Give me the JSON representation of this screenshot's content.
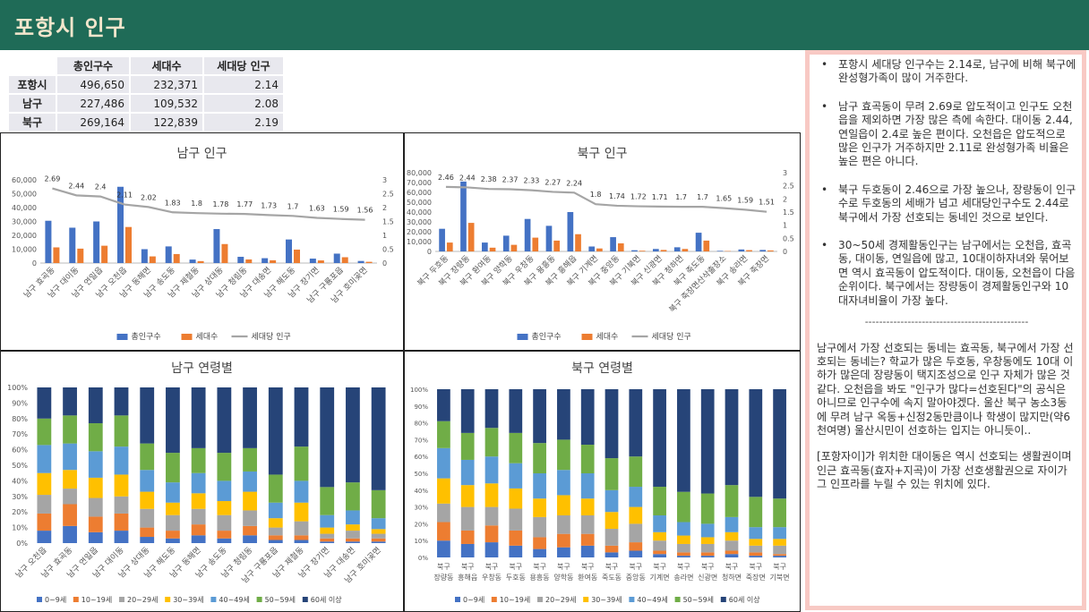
{
  "header": {
    "title": "포항시 인구"
  },
  "summary_table": {
    "headers": [
      "",
      "총인구수",
      "세대수",
      "세대당 인구"
    ],
    "rows": [
      [
        "포항시",
        "496,650",
        "232,371",
        "2.14"
      ],
      [
        "남구",
        "227,486",
        "109,532",
        "2.08"
      ],
      [
        "북구",
        "269,164",
        "122,839",
        "2.19"
      ]
    ]
  },
  "notes": {
    "bullets": [
      "포항시 세대당 인구수는 2.14로, 남구에 비해 북구에 완성형가족이 많이 거주한다.",
      "남구 효곡동이 무려 2.69로 압도적이고 인구도 오천읍을 제외하면 가장 많은 측에 속한다. 대이동 2.44, 연일읍이 2.4로 높은 편이다. 오천읍은 압도적으로 많은 인구가 거주하지만 2.11로 완성형가족 비율은 높은 편은 아니다.",
      "북구 두호동이 2.46으로 가장 높으나, 장량동이 인구수로 두호동의 세배가 넘고 세대당인구수도 2.44로 북구에서 가장 선호되는 동네인 것으로 보인다.",
      "30~50세 경제활동인구는 남구에서는 오천읍, 효곡동, 대이동, 연일읍에 많고, 10대이하자녀와 묶어보면 역시 효곡동이 압도적이다. 대이동, 오천읍이 다음 순위이다. 북구에서는 장량동이 경제활동인구와 10대자녀비율이 가장 높다."
    ],
    "divider": "----------------------------------------------",
    "paragraphs": [
      "남구에서 가장 선호되는 동네는 효곡동, 북구에서 가장 선호되는 동네는? 학교가 많은 두호동, 우창동에도 10대 이하가 많은데 장량동이 택지조성으로 인구 자체가 많은 것 같다. 오천읍을 봐도 \"인구가 많다=선호된다\"의 공식은 아니므로 인구수에 속지 말아야겠다. 울산 북구 농소3동에 무려 남구 옥동+신정2동만큼이나 학생이 많지만(약6천여명) 울산시민이 선호하는 입지는 아니듯이..",
      "[포항자이]가 위치한 대이동은 역시 선호되는 생활권이며 인근 효곡동(효자+지곡)이 가장 선호생활권으로 자이가 그 인프라를 누릴 수 있는 위치에 있다."
    ]
  },
  "chart_data": [
    {
      "type": "bar",
      "title": "남구 인구",
      "categories": [
        "남구 효곡동",
        "남구 대이동",
        "남구 연일읍",
        "남구 오천읍",
        "남구 동해면",
        "남구 송도동",
        "남구 제철동",
        "남구 상대동",
        "남구 청림동",
        "남구 대송면",
        "남구 해도동",
        "남구 장기면",
        "남구 구룡포읍",
        "남구 호미곶면"
      ],
      "series": [
        {
          "name": "총인구수",
          "kind": "bar",
          "axis": "left",
          "values": [
            30500,
            25500,
            30000,
            55000,
            10000,
            12000,
            2500,
            24500,
            4500,
            3500,
            17000,
            3200,
            6800,
            1500
          ]
        },
        {
          "name": "세대수",
          "kind": "bar",
          "axis": "left",
          "values": [
            11300,
            10400,
            12500,
            26000,
            4800,
            6500,
            1400,
            13700,
            2600,
            2000,
            9700,
            1900,
            4200,
            900
          ]
        },
        {
          "name": "세대당 인구",
          "kind": "line",
          "axis": "right",
          "values": [
            2.69,
            2.44,
            2.4,
            2.11,
            2.02,
            1.83,
            1.8,
            1.78,
            1.77,
            1.73,
            1.7,
            1.63,
            1.59,
            1.56
          ]
        }
      ],
      "ylim": [
        0,
        60000
      ],
      "yticks": [
        "0",
        "10,000",
        "20,000",
        "30,000",
        "40,000",
        "50,000",
        "60,000"
      ],
      "y2lim": [
        0,
        3
      ],
      "y2ticks": [
        "0",
        "0.5",
        "1",
        "1.5",
        "2",
        "2.5",
        "3"
      ],
      "legend": "bottom",
      "colors": {
        "총인구수": "#4472c4",
        "세대수": "#ed7d31",
        "세대당 인구": "#a5a5a5"
      }
    },
    {
      "type": "bar",
      "title": "북구 인구",
      "categories": [
        "북구 두호동",
        "북구 장량동",
        "북구 환여동",
        "북구 양학동",
        "북구 우창동",
        "북구 용흥동",
        "북구 흥해읍",
        "북구 기계면",
        "북구 중앙동",
        "북구 기북면",
        "북구 신광면",
        "북구 청하면",
        "북구 죽도동",
        "북구 죽장면산삭출장소",
        "북구 송라면",
        "북구 죽장면"
      ],
      "series": [
        {
          "name": "총인구수",
          "kind": "bar",
          "axis": "left",
          "values": [
            23000,
            71000,
            9000,
            16000,
            33000,
            26000,
            40000,
            5000,
            14500,
            1200,
            2500,
            4200,
            19000,
            600,
            2000,
            1500
          ]
        },
        {
          "name": "세대수",
          "kind": "bar",
          "axis": "left",
          "values": [
            9000,
            29000,
            3800,
            6700,
            14000,
            11000,
            17500,
            3000,
            8200,
            700,
            1500,
            2500,
            11000,
            400,
            1300,
            1000
          ]
        },
        {
          "name": "세대당 인구",
          "kind": "line",
          "axis": "right",
          "values": [
            2.46,
            2.44,
            2.38,
            2.37,
            2.33,
            2.27,
            2.24,
            1.8,
            1.74,
            1.72,
            1.71,
            1.7,
            1.7,
            1.65,
            1.59,
            1.51
          ]
        }
      ],
      "ylim": [
        0,
        80000
      ],
      "yticks": [
        "0",
        "10,000",
        "20,000",
        "30,000",
        "40,000",
        "50,000",
        "60,000",
        "70,000",
        "80,000"
      ],
      "y2lim": [
        0,
        3
      ],
      "y2ticks": [
        "0",
        "0.5",
        "1",
        "1.5",
        "2",
        "2.5",
        "3"
      ],
      "legend": "bottom",
      "colors": {
        "총인구수": "#4472c4",
        "세대수": "#ed7d31",
        "세대당 인구": "#a5a5a5"
      }
    },
    {
      "type": "bar",
      "stacked": "percent",
      "title": "남구 연령별",
      "categories": [
        "남구 오천읍",
        "남구 효곡동",
        "남구 연일읍",
        "남구 대이동",
        "남구 상대동",
        "남구 해도동",
        "남구 동해면",
        "남구 송도동",
        "남구 청림동",
        "남구 구룡포읍",
        "남구 제철동",
        "남구 장기면",
        "남구 대송면",
        "남구 호미곶면"
      ],
      "series": [
        {
          "name": "0~9세",
          "values": [
            8,
            11,
            7,
            8,
            4,
            3,
            5,
            3,
            5,
            2,
            2,
            1,
            1,
            1
          ]
        },
        {
          "name": "10~19세",
          "values": [
            11,
            14,
            10,
            11,
            6,
            5,
            7,
            5,
            6,
            3,
            3,
            2,
            2,
            2
          ]
        },
        {
          "name": "20~29세",
          "values": [
            12,
            10,
            12,
            11,
            12,
            10,
            10,
            10,
            10,
            5,
            9,
            3,
            5,
            3
          ]
        },
        {
          "name": "30~39세",
          "values": [
            14,
            12,
            13,
            14,
            11,
            8,
            10,
            9,
            12,
            6,
            12,
            4,
            4,
            3
          ]
        },
        {
          "name": "40~49세",
          "values": [
            18,
            17,
            17,
            18,
            14,
            13,
            13,
            13,
            13,
            10,
            14,
            8,
            9,
            7
          ]
        },
        {
          "name": "50~59세",
          "values": [
            17,
            18,
            18,
            20,
            17,
            19,
            16,
            18,
            15,
            18,
            22,
            18,
            18,
            18
          ]
        },
        {
          "name": "60세 이상",
          "values": [
            20,
            18,
            23,
            18,
            36,
            42,
            39,
            42,
            39,
            56,
            38,
            64,
            61,
            66
          ]
        }
      ],
      "yticks": [
        "0%",
        "10%",
        "20%",
        "30%",
        "40%",
        "50%",
        "60%",
        "70%",
        "80%",
        "90%",
        "100%"
      ],
      "legend": "bottom",
      "colors": {
        "0~9세": "#4472c4",
        "10~19세": "#ed7d31",
        "20~29세": "#a5a5a5",
        "30~39세": "#ffc000",
        "40~49세": "#5b9bd5",
        "50~59세": "#70ad47",
        "60세 이상": "#264478"
      }
    },
    {
      "type": "bar",
      "stacked": "percent",
      "title": "북구 연령별",
      "categories": [
        "북구 장량동",
        "북구 흥해읍",
        "북구 우창동",
        "북구 두호동",
        "북구 용흥동",
        "북구 양학동",
        "북구 환여동",
        "북구 죽도동",
        "북구 중앙동",
        "북구 기계면",
        "북구 송라면",
        "북구 신광면",
        "북구 청하면",
        "북구 죽장면",
        "북구 기북면"
      ],
      "series": [
        {
          "name": "0~9세",
          "values": [
            10,
            8,
            9,
            7,
            5,
            6,
            7,
            3,
            4,
            2,
            1,
            1,
            2,
            1,
            1
          ]
        },
        {
          "name": "10~19세",
          "values": [
            11,
            8,
            10,
            9,
            7,
            8,
            7,
            4,
            5,
            2,
            2,
            2,
            2,
            2,
            1
          ]
        },
        {
          "name": "20~29세",
          "values": [
            11,
            14,
            11,
            13,
            12,
            11,
            11,
            10,
            11,
            6,
            5,
            5,
            6,
            4,
            5
          ]
        },
        {
          "name": "30~39세",
          "values": [
            15,
            13,
            14,
            12,
            11,
            12,
            10,
            10,
            10,
            5,
            5,
            4,
            5,
            4,
            4
          ]
        },
        {
          "name": "40~49세",
          "values": [
            18,
            15,
            16,
            15,
            15,
            15,
            15,
            13,
            12,
            10,
            8,
            8,
            9,
            7,
            7
          ]
        },
        {
          "name": "50~59세",
          "values": [
            16,
            16,
            17,
            18,
            18,
            18,
            17,
            19,
            18,
            17,
            18,
            18,
            19,
            18,
            17
          ]
        },
        {
          "name": "60세 이상",
          "values": [
            19,
            26,
            23,
            26,
            32,
            30,
            33,
            41,
            40,
            58,
            61,
            62,
            57,
            64,
            65
          ]
        }
      ],
      "yticks": [
        "0%",
        "10%",
        "20%",
        "30%",
        "40%",
        "50%",
        "60%",
        "70%",
        "80%",
        "90%",
        "100%"
      ],
      "legend": "bottom",
      "colors": {
        "0~9세": "#4472c4",
        "10~19세": "#ed7d31",
        "20~29세": "#a5a5a5",
        "30~39세": "#ffc000",
        "40~49세": "#5b9bd5",
        "50~59세": "#70ad47",
        "60세 이상": "#264478"
      }
    }
  ]
}
